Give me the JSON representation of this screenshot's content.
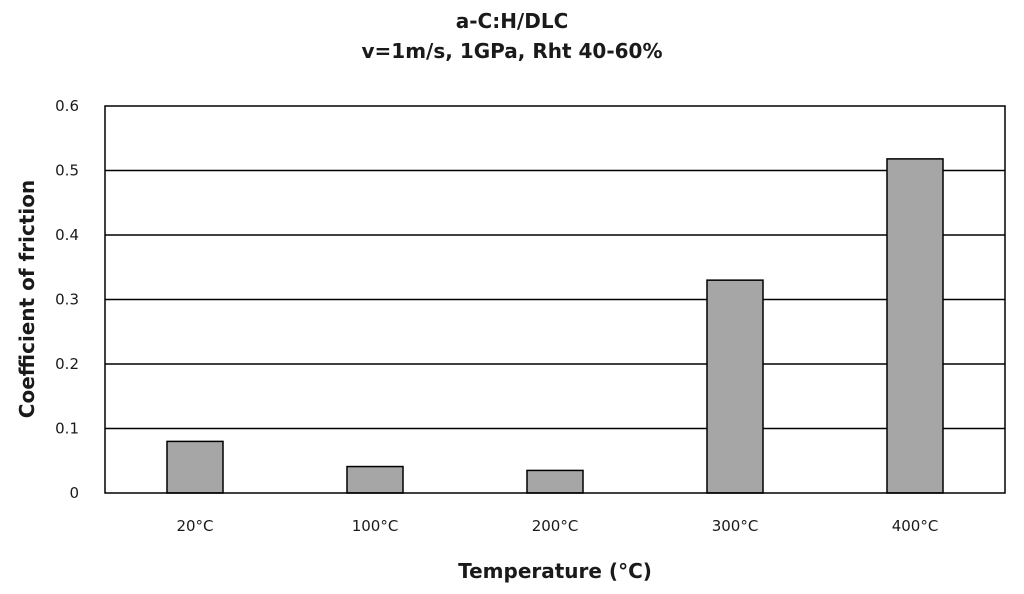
{
  "chart_data": {
    "type": "bar",
    "title": "a-C:H/DLC",
    "subtitle": "v=1m/s, 1GPa, Rht 40-60%",
    "xlabel": "Temperature (°C)",
    "ylabel": "Coefficient of friction",
    "categories": [
      "20°C",
      "100°C",
      "200°C",
      "300°C",
      "400°C"
    ],
    "values": [
      0.08,
      0.041,
      0.035,
      0.33,
      0.518
    ],
    "ylim": [
      0,
      0.6
    ],
    "yticks": [
      0,
      0.1,
      0.2,
      0.3,
      0.4,
      0.5,
      0.6
    ],
    "ytick_labels": [
      "0",
      "0.1",
      "0.2",
      "0.3",
      "0.4",
      "0.5",
      "0.6"
    ],
    "grid": true,
    "legend": "none",
    "colors": {
      "bar_fill": "#a6a6a6",
      "bar_stroke": "#000000",
      "grid": "#000000"
    }
  }
}
